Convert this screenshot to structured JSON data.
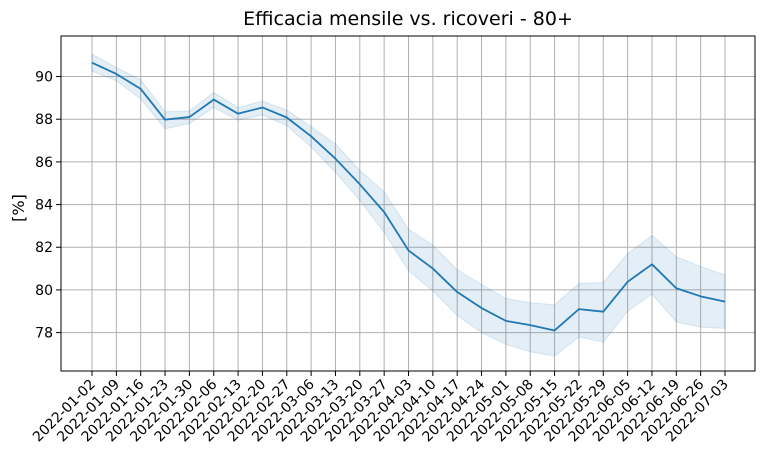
{
  "chart_data": {
    "type": "line",
    "title": "Efficacia mensile vs. ricoveri - 80+",
    "xlabel": "",
    "ylabel": "[%]",
    "ylim": [
      76.2,
      91.9
    ],
    "yticks": [
      78,
      80,
      82,
      84,
      86,
      88,
      90
    ],
    "grid": true,
    "x": [
      "2022-01-02",
      "2022-01-09",
      "2022-01-16",
      "2022-01-23",
      "2022-01-30",
      "2022-02-06",
      "2022-02-13",
      "2022-02-20",
      "2022-02-27",
      "2022-03-06",
      "2022-03-13",
      "2022-03-20",
      "2022-03-27",
      "2022-04-03",
      "2022-04-10",
      "2022-04-17",
      "2022-04-24",
      "2022-05-01",
      "2022-05-08",
      "2022-05-15",
      "2022-05-22",
      "2022-05-29",
      "2022-06-05",
      "2022-06-12",
      "2022-06-19",
      "2022-06-26",
      "2022-07-03"
    ],
    "series": [
      {
        "values": [
          90.65,
          90.12,
          89.42,
          87.98,
          88.1,
          88.92,
          88.26,
          88.55,
          88.08,
          87.2,
          86.15,
          84.95,
          83.65,
          81.85,
          81.0,
          79.9,
          79.15,
          78.55,
          78.35,
          78.1,
          79.1,
          78.98,
          80.38,
          81.2,
          80.08,
          79.7,
          79.45
        ],
        "lower": [
          90.25,
          89.8,
          88.95,
          87.55,
          87.8,
          88.55,
          87.95,
          88.2,
          87.7,
          86.7,
          85.5,
          84.2,
          82.7,
          80.9,
          79.95,
          78.8,
          78.0,
          77.45,
          77.1,
          76.9,
          77.8,
          77.55,
          79.0,
          79.8,
          78.5,
          78.25,
          78.2
        ],
        "upper": [
          91.05,
          90.42,
          89.85,
          88.35,
          88.38,
          89.25,
          88.55,
          88.85,
          88.42,
          87.65,
          86.85,
          85.6,
          84.6,
          82.85,
          82.1,
          80.95,
          80.25,
          79.6,
          79.4,
          79.3,
          80.3,
          80.35,
          81.7,
          82.55,
          81.55,
          81.1,
          80.7
        ]
      }
    ],
    "colors": {
      "line": "#1f77b4",
      "band": "#1f77b4",
      "grid": "#b0b0b0"
    }
  }
}
